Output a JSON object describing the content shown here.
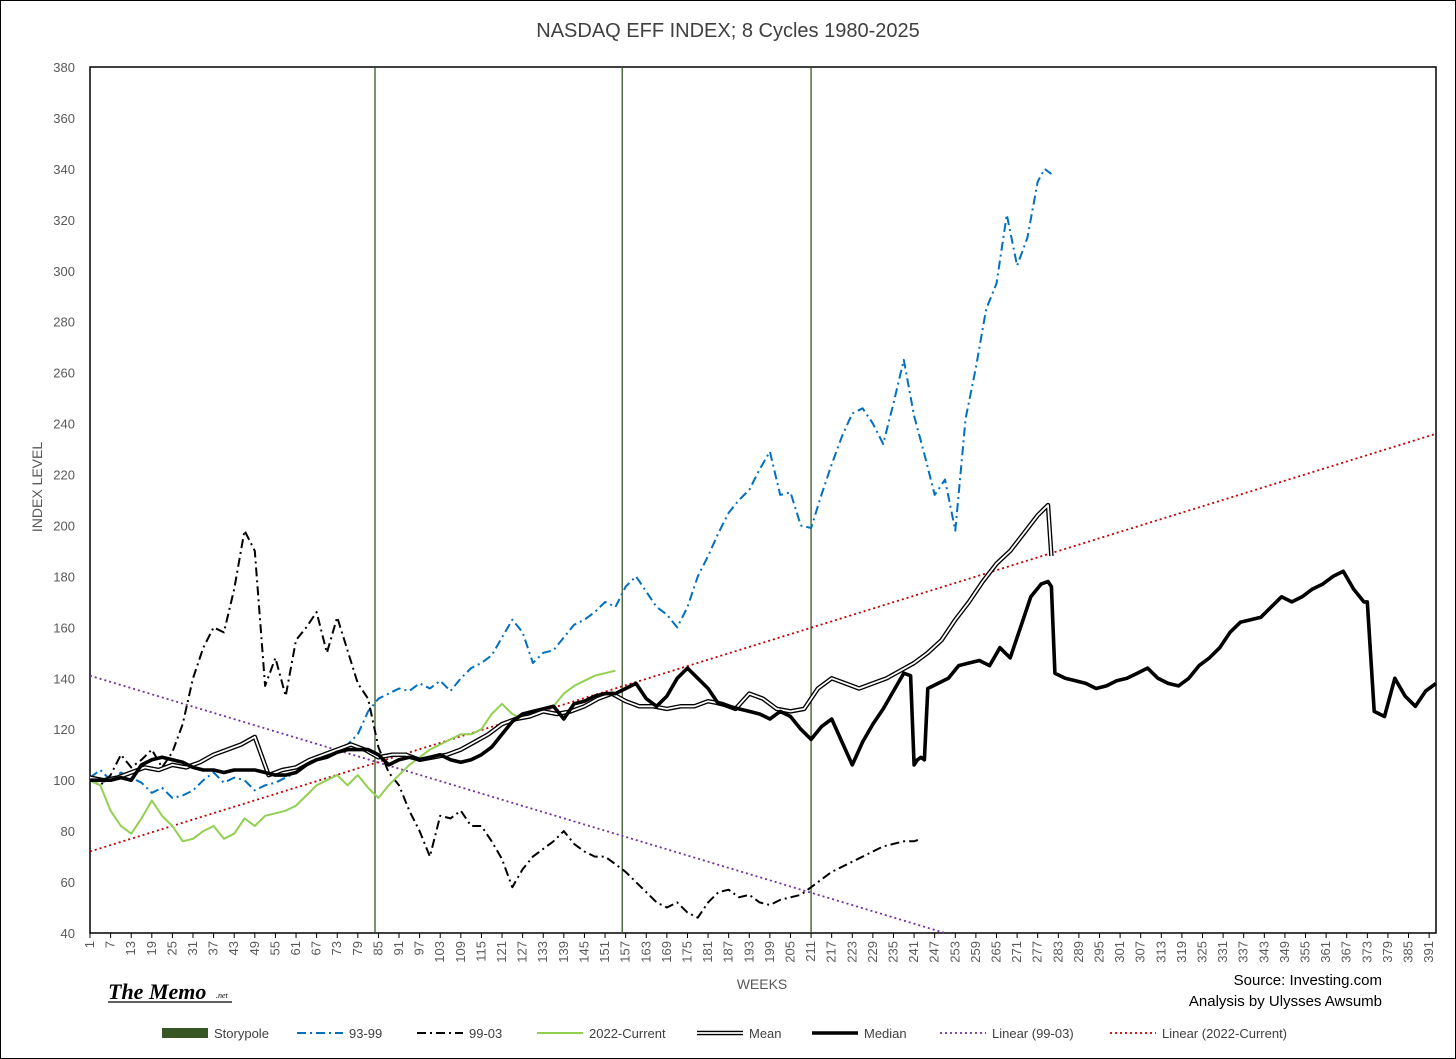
{
  "chart_data": {
    "type": "line",
    "title": "NASDAQ EFF INDEX; 8 Cycles 1980-2025",
    "xlabel": "WEEKS",
    "ylabel": "INDEX LEVEL",
    "xlim": [
      1,
      393
    ],
    "ylim": [
      40,
      380
    ],
    "yticks": [
      40,
      60,
      80,
      100,
      120,
      140,
      160,
      180,
      200,
      220,
      240,
      260,
      280,
      300,
      320,
      340,
      360,
      380
    ],
    "xticks": [
      1,
      7,
      13,
      19,
      25,
      31,
      37,
      43,
      49,
      55,
      61,
      67,
      73,
      79,
      85,
      91,
      97,
      103,
      109,
      115,
      121,
      127,
      133,
      139,
      145,
      151,
      157,
      163,
      169,
      175,
      181,
      187,
      193,
      199,
      205,
      211,
      217,
      223,
      229,
      235,
      241,
      247,
      253,
      259,
      265,
      271,
      277,
      283,
      289,
      295,
      301,
      307,
      313,
      319,
      325,
      331,
      337,
      343,
      349,
      355,
      361,
      367,
      373,
      379,
      385,
      391
    ],
    "grid": false,
    "legend_position": "bottom",
    "storypole_weeks": [
      84,
      156,
      211
    ],
    "series": [
      {
        "name": "Storypole",
        "color": "#375623",
        "style": "vertical-markers"
      },
      {
        "name": "93-99",
        "color": "#0070C0",
        "style": "dash-dot",
        "x": [
          1,
          4,
          7,
          10,
          13,
          16,
          19,
          22,
          25,
          28,
          31,
          34,
          37,
          40,
          43,
          46,
          49,
          52,
          55,
          58,
          61,
          64,
          67,
          70,
          73,
          76,
          79,
          82,
          85,
          88,
          91,
          94,
          97,
          100,
          103,
          106,
          109,
          112,
          115,
          118,
          121,
          124,
          127,
          130,
          133,
          136,
          139,
          142,
          145,
          148,
          151,
          154,
          157,
          160,
          163,
          166,
          169,
          172,
          175,
          178,
          181,
          184,
          187,
          190,
          193,
          196,
          199,
          202,
          205,
          208,
          211,
          214,
          217,
          220,
          223,
          226,
          229,
          232,
          235,
          238,
          241,
          244,
          247,
          250,
          253,
          256,
          259,
          262,
          265,
          268,
          271,
          274,
          277,
          279,
          281
        ],
        "values": [
          101,
          104,
          100,
          103,
          101,
          99,
          95,
          97,
          93,
          94,
          96,
          100,
          103,
          99,
          101,
          100,
          96,
          98,
          99,
          101,
          103,
          106,
          109,
          110,
          112,
          114,
          118,
          127,
          132,
          134,
          136,
          135,
          138,
          136,
          139,
          135,
          140,
          144,
          146,
          149,
          156,
          163,
          158,
          146,
          150,
          151,
          156,
          161,
          163,
          166,
          170,
          168,
          176,
          180,
          174,
          168,
          165,
          160,
          168,
          180,
          188,
          197,
          205,
          210,
          214,
          222,
          229,
          212,
          213,
          200,
          199,
          212,
          224,
          235,
          244,
          246,
          240,
          232,
          248,
          265,
          243,
          228,
          212,
          218,
          198,
          242,
          262,
          285,
          295,
          322,
          302,
          313,
          335,
          340,
          338
        ]
      },
      {
        "name": "99-03",
        "color": "#000000",
        "style": "dash-dot",
        "x": [
          1,
          4,
          7,
          10,
          13,
          16,
          19,
          22,
          25,
          28,
          31,
          34,
          37,
          40,
          43,
          46,
          49,
          52,
          55,
          58,
          61,
          64,
          67,
          70,
          73,
          76,
          79,
          82,
          85,
          88,
          91,
          94,
          97,
          100,
          103,
          106,
          109,
          112,
          115,
          118,
          121,
          124,
          127,
          130,
          133,
          136,
          139,
          142,
          145,
          148,
          151,
          154,
          157,
          160,
          163,
          166,
          169,
          172,
          175,
          178,
          181,
          184,
          187,
          190,
          193,
          196,
          199,
          202,
          205,
          208,
          211,
          214,
          217,
          220,
          223,
          226,
          229,
          232,
          235,
          238,
          241,
          243
        ],
        "values": [
          100,
          98,
          102,
          110,
          105,
          108,
          112,
          105,
          111,
          122,
          140,
          152,
          160,
          158,
          175,
          198,
          190,
          137,
          148,
          133,
          155,
          160,
          166,
          150,
          164,
          151,
          138,
          132,
          113,
          103,
          98,
          88,
          80,
          70,
          86,
          85,
          88,
          82,
          82,
          76,
          69,
          58,
          65,
          70,
          73,
          76,
          80,
          75,
          72,
          70,
          70,
          67,
          64,
          60,
          56,
          52,
          50,
          52,
          48,
          46,
          52,
          56,
          57,
          54,
          55,
          52,
          51,
          53,
          54,
          55,
          58,
          61,
          64,
          66,
          68,
          70,
          72,
          74,
          75,
          76,
          76,
          77
        ]
      },
      {
        "name": "2022-Current",
        "color": "#92D050",
        "style": "solid",
        "x": [
          1,
          4,
          7,
          10,
          13,
          16,
          19,
          22,
          25,
          28,
          31,
          34,
          37,
          40,
          43,
          46,
          49,
          52,
          55,
          58,
          61,
          64,
          67,
          70,
          73,
          76,
          79,
          82,
          85,
          88,
          91,
          94,
          97,
          100,
          103,
          106,
          109,
          112,
          115,
          118,
          121,
          124,
          127,
          130,
          133,
          136,
          139,
          142,
          145,
          148,
          151,
          154
        ],
        "values": [
          100,
          98,
          88,
          82,
          79,
          85,
          92,
          86,
          82,
          76,
          77,
          80,
          82,
          77,
          79,
          85,
          82,
          86,
          87,
          88,
          90,
          94,
          98,
          100,
          102,
          98,
          102,
          97,
          93,
          98,
          102,
          106,
          109,
          112,
          114,
          116,
          118,
          118,
          120,
          126,
          130,
          126,
          124,
          126,
          128,
          129,
          134,
          137,
          139,
          141,
          142,
          143
        ]
      },
      {
        "name": "Mean",
        "color": "#000000",
        "style": "double",
        "x": [
          1,
          5,
          9,
          13,
          17,
          21,
          25,
          29,
          33,
          37,
          41,
          45,
          49,
          53,
          57,
          61,
          65,
          69,
          73,
          77,
          81,
          85,
          89,
          93,
          97,
          101,
          105,
          109,
          113,
          117,
          121,
          125,
          129,
          133,
          137,
          141,
          145,
          149,
          153,
          157,
          161,
          165,
          169,
          173,
          177,
          181,
          185,
          189,
          193,
          197,
          201,
          205,
          209,
          213,
          217,
          221,
          225,
          229,
          233,
          237,
          241,
          245,
          249,
          253,
          257,
          261,
          265,
          269,
          273,
          277,
          280,
          281
        ],
        "values": [
          101,
          100,
          101,
          103,
          105,
          104,
          106,
          105,
          107,
          110,
          112,
          114,
          117,
          102,
          104,
          105,
          108,
          110,
          112,
          114,
          112,
          109,
          110,
          110,
          108,
          109,
          110,
          112,
          115,
          118,
          122,
          124,
          125,
          127,
          126,
          127,
          129,
          132,
          134,
          131,
          129,
          129,
          128,
          129,
          129,
          131,
          130,
          128,
          134,
          132,
          128,
          127,
          128,
          136,
          140,
          138,
          136,
          138,
          140,
          143,
          146,
          150,
          155,
          163,
          170,
          178,
          185,
          190,
          197,
          204,
          208,
          188
        ]
      },
      {
        "name": "Median",
        "color": "#000000",
        "style": "bold",
        "x": [
          1,
          4,
          7,
          10,
          13,
          16,
          19,
          22,
          25,
          28,
          31,
          34,
          37,
          40,
          43,
          46,
          49,
          52,
          55,
          58,
          61,
          64,
          67,
          70,
          73,
          76,
          79,
          82,
          85,
          88,
          91,
          94,
          97,
          100,
          103,
          106,
          109,
          112,
          115,
          118,
          121,
          124,
          127,
          130,
          133,
          136,
          139,
          142,
          145,
          148,
          151,
          154,
          157,
          160,
          163,
          166,
          169,
          172,
          175,
          178,
          181,
          184,
          187,
          190,
          193,
          196,
          199,
          202,
          205,
          208,
          211,
          214,
          217,
          220,
          223,
          226,
          229,
          232,
          235,
          238,
          240,
          241,
          242,
          243,
          244,
          245,
          248,
          251,
          254,
          257,
          260,
          263,
          266,
          269,
          272,
          275,
          278,
          280,
          281,
          282,
          285,
          288,
          291,
          294,
          297,
          300,
          303,
          306,
          309,
          312,
          315,
          318,
          321,
          324,
          327,
          330,
          333,
          336,
          339,
          342,
          345,
          348,
          351,
          354,
          357,
          360,
          363,
          366,
          369,
          372,
          373,
          375,
          378,
          381,
          384,
          387,
          390,
          393
        ],
        "values": [
          100,
          100,
          100,
          101,
          100,
          106,
          108,
          109,
          108,
          107,
          105,
          104,
          104,
          103,
          104,
          104,
          104,
          103,
          102,
          102,
          103,
          106,
          108,
          109,
          111,
          112,
          112,
          112,
          110,
          106,
          108,
          109,
          108,
          109,
          110,
          108,
          107,
          108,
          110,
          113,
          118,
          123,
          126,
          127,
          128,
          129,
          124,
          130,
          131,
          133,
          134,
          134,
          136,
          138,
          132,
          129,
          133,
          140,
          144,
          140,
          136,
          130,
          129,
          128,
          127,
          126,
          124,
          127,
          125,
          120,
          116,
          121,
          124,
          115,
          106,
          115,
          122,
          128,
          135,
          142,
          141,
          106,
          108,
          109,
          108,
          136,
          138,
          140,
          145,
          146,
          147,
          145,
          152,
          148,
          160,
          172,
          177,
          178,
          176,
          142,
          140,
          139,
          138,
          136,
          137,
          139,
          140,
          142,
          144,
          140,
          138,
          137,
          140,
          145,
          148,
          152,
          158,
          162,
          163,
          164,
          168,
          172,
          170,
          172,
          175,
          177,
          180,
          182,
          175,
          170,
          170,
          127,
          125,
          140,
          133,
          129,
          135,
          138
        ]
      },
      {
        "name": "Linear (99-03)",
        "color": "#7030A0",
        "style": "dotted",
        "x": [
          1,
          250
        ],
        "values": [
          141,
          40
        ]
      },
      {
        "name": "Linear (2022-Current)",
        "color": "#C00000",
        "style": "dotted",
        "x": [
          1,
          393
        ],
        "values": [
          72,
          236
        ]
      }
    ]
  },
  "credits": {
    "source": "Source: Investing.com",
    "analysis": "Analysis by Ulysses Awsumb"
  },
  "logo": {
    "text": "The Memo",
    "suffix": ".net"
  }
}
